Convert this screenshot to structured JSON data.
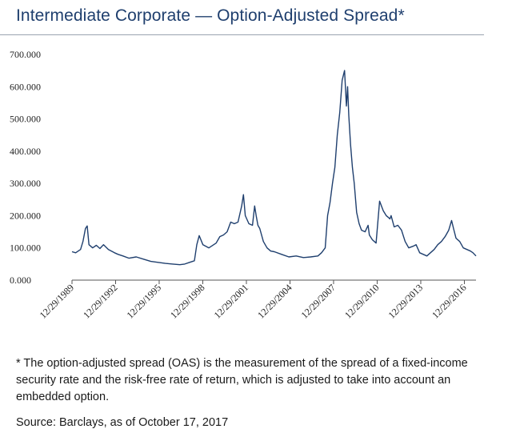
{
  "title": "Intermediate Corporate — Option-Adjusted Spread*",
  "footnote": "* The option-adjusted spread (OAS) is the measurement of the spread of a fixed-income security rate and the risk-free rate of return, which is adjusted to take into account an embedded option.",
  "source": "Source: Barclays, as of October 17, 2017",
  "chart_data": {
    "type": "line",
    "title": "",
    "xlabel": "",
    "ylabel": "",
    "ylim": [
      0,
      700
    ],
    "xlim": [
      "1989-12-29",
      "2017-10-17"
    ],
    "grid": false,
    "legend": "none",
    "line_color": "#1f3f6e",
    "y_ticks": [
      "0.000",
      "100.000",
      "200.000",
      "300.000",
      "400.000",
      "500.000",
      "600.000",
      "700.000"
    ],
    "x_ticks": [
      "12/29/1989",
      "12/29/1992",
      "12/29/1995",
      "12/29/1998",
      "12/29/2001",
      "12/29/2004",
      "12/29/2007",
      "12/29/2010",
      "12/29/2013",
      "12/29/2016"
    ],
    "series": [
      {
        "x": [
          "1989-12-29",
          "1990-04-01",
          "1990-08-01",
          "1990-10-01",
          "1990-12-01",
          "1991-01-15",
          "1991-03-01",
          "1991-06-01",
          "1991-09-01",
          "1991-12-01",
          "1992-03-01",
          "1992-07-01",
          "1992-12-01",
          "1993-03-01",
          "1993-07-01",
          "1993-12-01",
          "1994-06-01",
          "1994-12-01",
          "1995-06-01",
          "1995-12-01",
          "1996-06-01",
          "1996-12-01",
          "1997-06-01",
          "1997-10-01",
          "1998-02-01",
          "1998-06-01",
          "1998-08-01",
          "1998-10-01",
          "1999-01-01",
          "1999-06-01",
          "1999-12-01",
          "2000-03-01",
          "2000-06-01",
          "2000-09-01",
          "2000-12-01",
          "2001-03-01",
          "2001-06-01",
          "2001-09-01",
          "2001-10-15",
          "2001-12-01",
          "2002-03-01",
          "2002-06-01",
          "2002-07-25",
          "2002-09-01",
          "2002-10-15",
          "2002-12-01",
          "2003-03-01",
          "2003-06-01",
          "2003-09-01",
          "2003-12-01",
          "2004-06-01",
          "2004-12-01",
          "2005-06-01",
          "2005-12-01",
          "2006-06-01",
          "2006-12-01",
          "2007-03-01",
          "2007-06-01",
          "2007-08-01",
          "2007-10-01",
          "2007-12-01",
          "2008-02-01",
          "2008-04-01",
          "2008-06-01",
          "2008-08-01",
          "2008-10-01",
          "2008-11-15",
          "2008-12-15",
          "2009-01-15",
          "2009-03-01",
          "2009-04-15",
          "2009-06-01",
          "2009-08-01",
          "2009-10-01",
          "2009-12-01",
          "2010-03-01",
          "2010-05-15",
          "2010-06-15",
          "2010-09-01",
          "2010-12-01",
          "2011-03-01",
          "2011-06-01",
          "2011-08-15",
          "2011-10-01",
          "2011-11-15",
          "2011-12-15",
          "2012-03-01",
          "2012-06-01",
          "2012-09-01",
          "2012-12-01",
          "2013-03-01",
          "2013-06-15",
          "2013-09-01",
          "2013-12-01",
          "2014-06-01",
          "2014-12-01",
          "2015-03-01",
          "2015-06-01",
          "2015-09-01",
          "2015-12-01",
          "2016-02-11",
          "2016-04-01",
          "2016-06-01",
          "2016-09-01",
          "2016-12-01",
          "2017-03-01",
          "2017-06-01",
          "2017-08-01",
          "2017-10-17"
        ],
        "y": [
          88,
          85,
          95,
          120,
          160,
          168,
          110,
          100,
          108,
          98,
          110,
          95,
          85,
          80,
          75,
          68,
          72,
          65,
          58,
          55,
          52,
          50,
          48,
          50,
          55,
          60,
          110,
          138,
          110,
          100,
          115,
          135,
          140,
          150,
          180,
          175,
          180,
          230,
          265,
          200,
          175,
          170,
          230,
          200,
          170,
          160,
          120,
          100,
          90,
          88,
          80,
          72,
          75,
          70,
          72,
          75,
          85,
          100,
          200,
          240,
          300,
          350,
          450,
          520,
          620,
          650,
          540,
          600,
          510,
          420,
          350,
          300,
          210,
          175,
          155,
          150,
          170,
          140,
          125,
          115,
          245,
          215,
          200,
          195,
          190,
          200,
          165,
          170,
          155,
          120,
          100,
          105,
          110,
          85,
          75,
          95,
          110,
          120,
          135,
          155,
          185,
          160,
          130,
          120,
          100,
          95,
          90,
          85,
          75
        ]
      }
    ]
  }
}
